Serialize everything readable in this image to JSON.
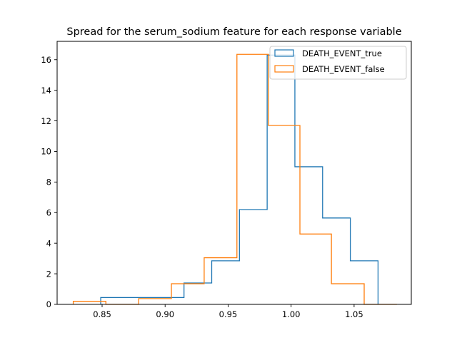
{
  "chart_data": {
    "type": "histogram",
    "title": "Spread for the serum_sodium feature for each response variable",
    "xlabel": "",
    "ylabel": "",
    "xlim": [
      0.8143,
      1.0954
    ],
    "ylim": [
      0,
      17.2
    ],
    "xticks": [
      0.85,
      0.9,
      0.95,
      1.0,
      1.05
    ],
    "xtick_labels": [
      "0.85",
      "0.90",
      "0.95",
      "1.00",
      "1.05"
    ],
    "yticks": [
      0,
      2,
      4,
      6,
      8,
      10,
      12,
      14,
      16
    ],
    "ytick_labels": [
      "0",
      "2",
      "4",
      "6",
      "8",
      "10",
      "12",
      "14",
      "16"
    ],
    "grid": false,
    "legend_position": "top-right",
    "series": [
      {
        "name": "DEATH_EVENT_true",
        "color": "#1f77b4",
        "bin_edges": [
          0.8489,
          0.871,
          0.893,
          0.915,
          0.937,
          0.959,
          0.981,
          1.003,
          1.025,
          1.047,
          1.069
        ],
        "counts": [
          0.45,
          0.45,
          0.45,
          1.4,
          2.85,
          6.2,
          16.3,
          9.0,
          5.65,
          2.85
        ]
      },
      {
        "name": "DEATH_EVENT_false",
        "color": "#ff7f0e",
        "bin_edges": [
          0.8271,
          0.853,
          0.879,
          0.905,
          0.931,
          0.957,
          0.982,
          1.007,
          1.032,
          1.058,
          1.084
        ],
        "counts": [
          0.2,
          0.0,
          0.38,
          1.35,
          3.05,
          16.35,
          11.7,
          4.6,
          1.35,
          0.0
        ]
      }
    ]
  }
}
